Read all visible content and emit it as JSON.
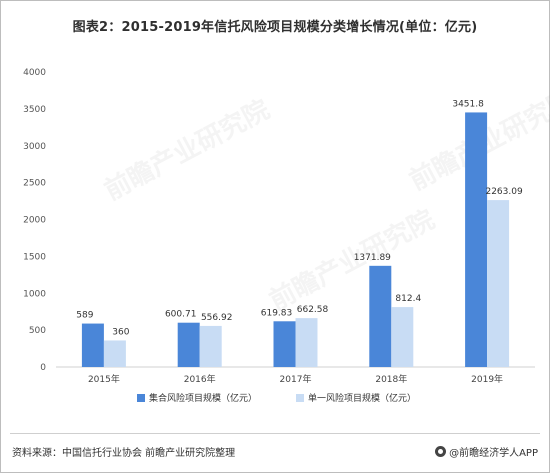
{
  "title": "图表2：2015-2019年信托风险项目规模分类增长情况(单位：亿元)",
  "footer": {
    "source": "资料来源：中国信托行业协会 前瞻产业研究院整理",
    "brand": "@前瞻经济学人APP"
  },
  "watermark": "前瞻产业研究院",
  "colors": {
    "series1": "#4a86d8",
    "series2": "#c8dcf4",
    "axis": "#d0d0d0"
  },
  "chart_data": {
    "type": "bar",
    "categories": [
      "2015年",
      "2016年",
      "2017年",
      "2018年",
      "2019年"
    ],
    "series": [
      {
        "name": "集合风险项目规模（亿元）",
        "values": [
          589,
          600.71,
          619.83,
          1371.89,
          3451.8
        ],
        "labels": [
          "589",
          "600.71",
          "619.83",
          "1371.89",
          "3451.8"
        ]
      },
      {
        "name": "单一风险项目规模（亿元）",
        "values": [
          360,
          556.92,
          662.58,
          812.4,
          2263.09
        ],
        "labels": [
          "360",
          "556.92",
          "662.58",
          "812.4",
          "2263.09"
        ]
      }
    ],
    "ylim": [
      0,
      4000
    ],
    "yticks": [
      "0",
      "500",
      "1000",
      "1500",
      "2000",
      "2500",
      "3000",
      "3500",
      "4000"
    ],
    "grid": false,
    "legend_position": "bottom"
  }
}
